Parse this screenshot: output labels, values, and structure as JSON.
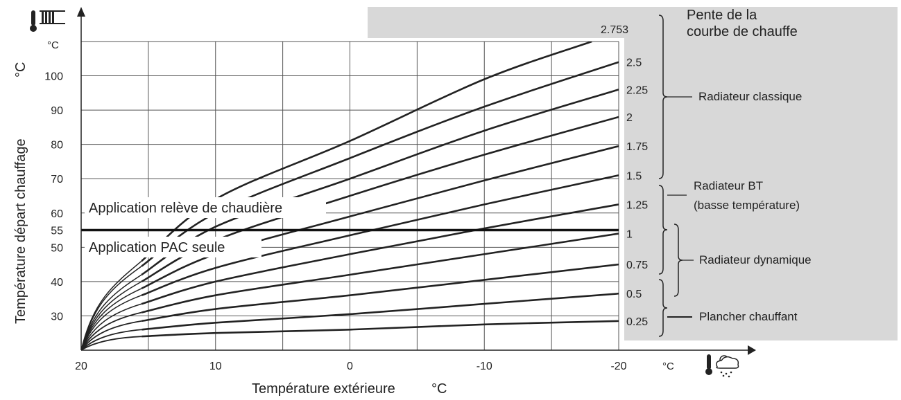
{
  "chart_data": {
    "type": "line",
    "xlabel": "Température extérieure",
    "xunit": "°C",
    "ylabel": "Température départ chauffage",
    "yunit": "°C",
    "x_unit_label": "°C",
    "x_reversed": true,
    "xlim": [
      20,
      -20
    ],
    "ylim": [
      20,
      110
    ],
    "x_ticks": [
      "20",
      "10",
      "0",
      "-10",
      "-20"
    ],
    "x_grid": [
      20,
      15,
      10,
      5,
      0,
      -5,
      -10,
      -15,
      -20
    ],
    "y_ticks": [
      {
        "value": 100,
        "label": "100"
      },
      {
        "value": 90,
        "label": "90"
      },
      {
        "value": 80,
        "label": "80"
      },
      {
        "value": 70,
        "label": "70"
      },
      {
        "value": 60,
        "label": "60"
      },
      {
        "value": 55,
        "label": "55"
      },
      {
        "value": 50,
        "label": "50"
      },
      {
        "value": 40,
        "label": "40"
      },
      {
        "value": 30,
        "label": "30"
      }
    ],
    "y_grid": [
      30,
      40,
      50,
      60,
      70,
      80,
      90,
      100,
      110
    ],
    "y_unit_label": "°C",
    "grid": true,
    "threshold": {
      "value": 55
    },
    "annotations": {
      "above_threshold": "Application relève de chaudière",
      "below_threshold": "Application PAC seule"
    },
    "legend_title": "Pente de la courbe de chauffe",
    "legend_title_lines": [
      "Pente de la",
      "courbe de chauffe"
    ],
    "legend_background": "#d8d8d8",
    "line_color": "#222222",
    "series": [
      {
        "slope": "0.25",
        "points": [
          [
            15.5,
            24
          ],
          [
            10,
            25
          ],
          [
            0,
            26
          ],
          [
            -10,
            27.5
          ],
          [
            -20,
            28.5
          ]
        ]
      },
      {
        "slope": "0.5",
        "points": [
          [
            15.5,
            26
          ],
          [
            10,
            28
          ],
          [
            0,
            30.5
          ],
          [
            -10,
            33.5
          ],
          [
            -20,
            36.5
          ]
        ]
      },
      {
        "slope": "0.75",
        "points": [
          [
            15.5,
            28.5
          ],
          [
            10,
            32
          ],
          [
            0,
            36
          ],
          [
            -10,
            40.5
          ],
          [
            -20,
            45
          ]
        ]
      },
      {
        "slope": "1",
        "points": [
          [
            15.5,
            31
          ],
          [
            10,
            36
          ],
          [
            0,
            42
          ],
          [
            -10,
            48
          ],
          [
            -20,
            54
          ]
        ]
      },
      {
        "slope": "1.25",
        "points": [
          [
            15.5,
            33.5
          ],
          [
            10,
            40
          ],
          [
            0,
            48
          ],
          [
            -10,
            55.5
          ],
          [
            -20,
            62.5
          ]
        ]
      },
      {
        "slope": "1.5",
        "points": [
          [
            15.5,
            36
          ],
          [
            10,
            44
          ],
          [
            0,
            53.5
          ],
          [
            -10,
            62.5
          ],
          [
            -20,
            71
          ]
        ]
      },
      {
        "slope": "1.75",
        "points": [
          [
            15.5,
            38
          ],
          [
            10,
            48
          ],
          [
            0,
            59
          ],
          [
            -10,
            69.5
          ],
          [
            -20,
            79.5
          ]
        ]
      },
      {
        "slope": "2",
        "points": [
          [
            15.5,
            40
          ],
          [
            10,
            52
          ],
          [
            0,
            65
          ],
          [
            -10,
            77
          ],
          [
            -20,
            88
          ]
        ]
      },
      {
        "slope": "2.25",
        "points": [
          [
            15.5,
            42
          ],
          [
            10,
            56
          ],
          [
            0,
            70
          ],
          [
            -10,
            84
          ],
          [
            -20,
            96
          ]
        ]
      },
      {
        "slope": "2.5",
        "points": [
          [
            15.5,
            44.5
          ],
          [
            10,
            60
          ],
          [
            0,
            76
          ],
          [
            -10,
            91
          ],
          [
            -20,
            104
          ]
        ]
      },
      {
        "slope": "2.753",
        "points": [
          [
            15.5,
            46
          ],
          [
            10,
            64
          ],
          [
            0,
            81
          ],
          [
            -10,
            99
          ],
          [
            -18,
            110
          ]
        ]
      }
    ],
    "curve_start": [
      20,
      20
    ],
    "side_labels": [
      {
        "text": "Radiateur classique"
      },
      {
        "text": "Radiateur BT"
      },
      {
        "text": "(basse température)"
      },
      {
        "text": "Radiateur dynamique"
      },
      {
        "text": "Plancher chauffant"
      }
    ]
  },
  "icons": {
    "y_axis_icon": "thermometer-radiator-icon",
    "x_axis_icon": "thermometer-weather-icon"
  }
}
